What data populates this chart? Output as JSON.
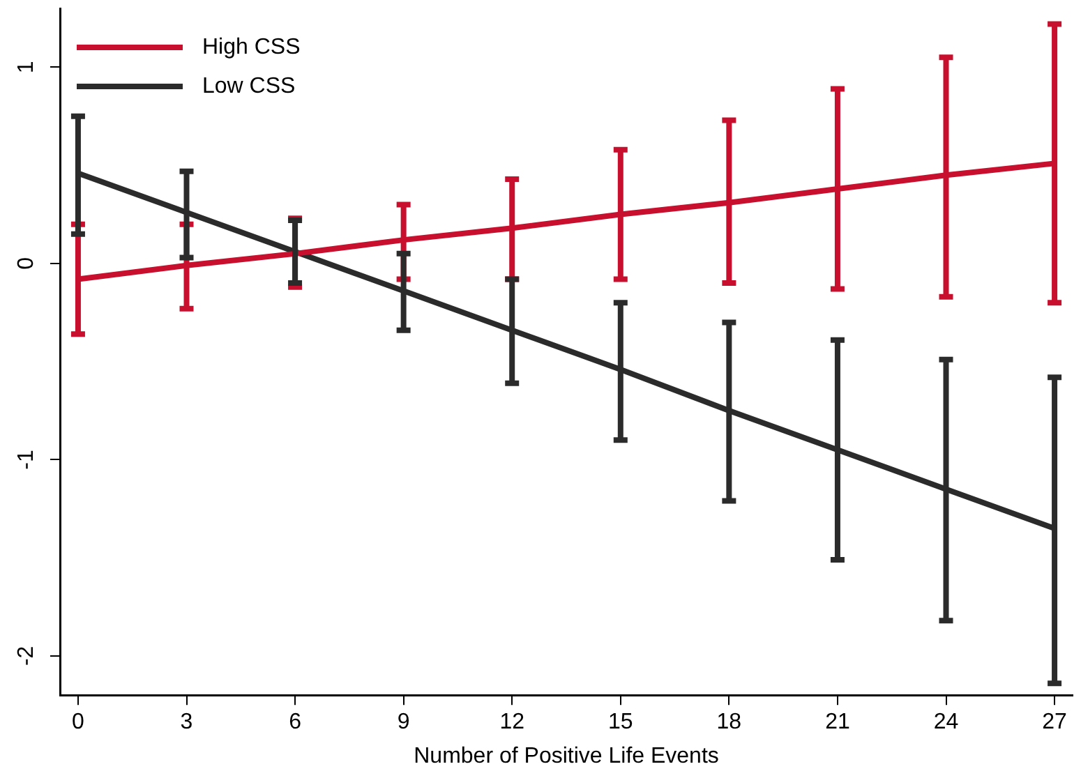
{
  "chart_data": {
    "type": "line",
    "xlabel": "Number of Positive Life Events",
    "x": [
      0,
      3,
      6,
      9,
      12,
      15,
      18,
      21,
      24,
      27
    ],
    "xlim": [
      -0.5,
      27.5
    ],
    "xticks": [
      0,
      3,
      6,
      9,
      12,
      15,
      18,
      21,
      24,
      27
    ],
    "ylim": [
      -2.2,
      1.3
    ],
    "yticks": [
      -2,
      -1,
      0,
      1
    ],
    "grid": false,
    "legend": "top left",
    "marker": "none",
    "line_style": "solid",
    "series": [
      {
        "name": "High CSS",
        "color": "#c8102e",
        "values": [
          -0.08,
          -0.01,
          0.05,
          0.12,
          0.18,
          0.25,
          0.31,
          0.38,
          0.45,
          0.51
        ],
        "errors": [
          [
            -0.36,
            0.2
          ],
          [
            -0.23,
            0.2
          ],
          [
            -0.12,
            0.23
          ],
          [
            -0.08,
            0.3
          ],
          [
            -0.08,
            0.43
          ],
          [
            -0.08,
            0.58
          ],
          [
            -0.1,
            0.73
          ],
          [
            -0.13,
            0.89
          ],
          [
            -0.17,
            1.05
          ],
          [
            -0.2,
            1.22
          ]
        ]
      },
      {
        "name": "Low CSS",
        "color": "#2b2b2b",
        "values": [
          0.46,
          0.26,
          0.06,
          -0.14,
          -0.34,
          -0.54,
          -0.75,
          -0.95,
          -1.15,
          -1.35
        ],
        "errors": [
          [
            0.15,
            0.75
          ],
          [
            0.03,
            0.47
          ],
          [
            -0.1,
            0.22
          ],
          [
            -0.34,
            0.05
          ],
          [
            -0.61,
            -0.08
          ],
          [
            -0.9,
            -0.2
          ],
          [
            -1.21,
            -0.3
          ],
          [
            -1.51,
            -0.39
          ],
          [
            -1.82,
            -0.49
          ],
          [
            -2.14,
            -0.58
          ]
        ]
      }
    ]
  }
}
